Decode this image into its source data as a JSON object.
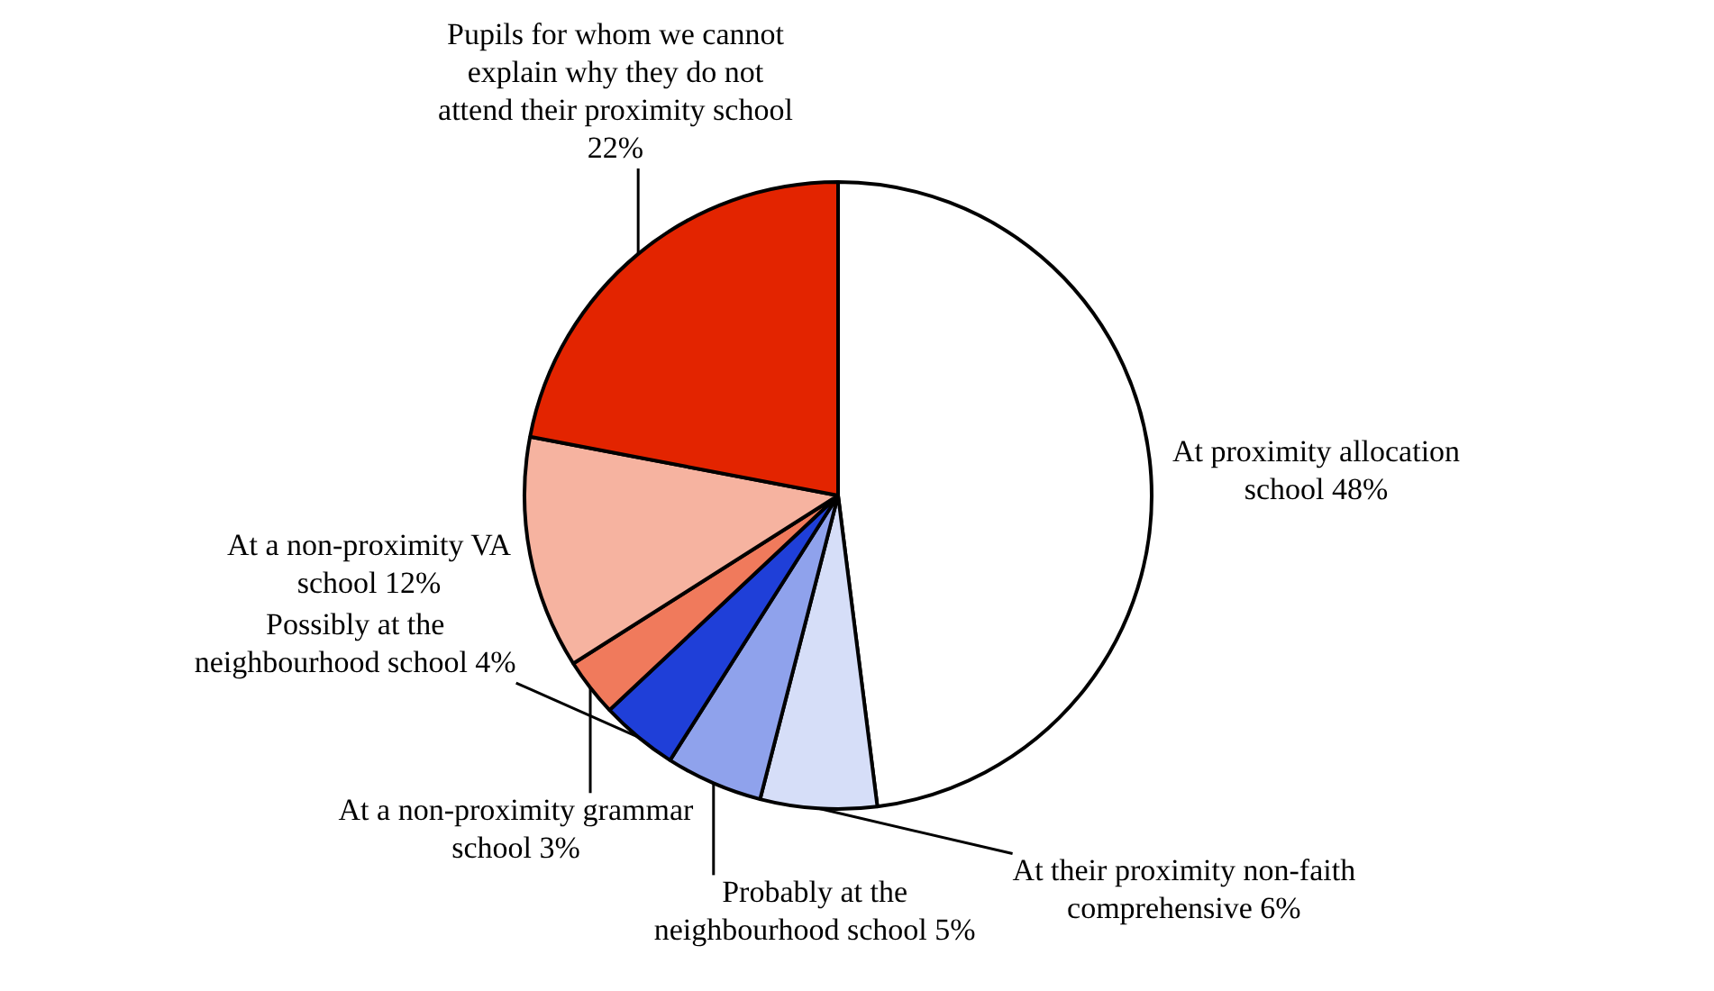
{
  "chart_data": {
    "type": "pie",
    "categories": [
      "At proximity allocation school",
      "At their proximity non-faith comprehensive",
      "Probably at the neighbourhood school",
      "Possibly at the neighbourhood school",
      "At a non-proximity grammar school",
      "At a non-proximity VA school",
      "Pupils for whom we cannot explain why they do not attend their proximity school"
    ],
    "values": [
      48,
      6,
      5,
      4,
      3,
      12,
      22
    ],
    "value_labels": [
      "48%",
      "6%",
      "5%",
      "4%",
      "3%",
      "12%",
      "22%"
    ],
    "colors": [
      "#ffffff",
      "#d6def8",
      "#8fa2ec",
      "#1f3fd8",
      "#f07a5c",
      "#f6b3a0",
      "#e32400"
    ]
  }
}
